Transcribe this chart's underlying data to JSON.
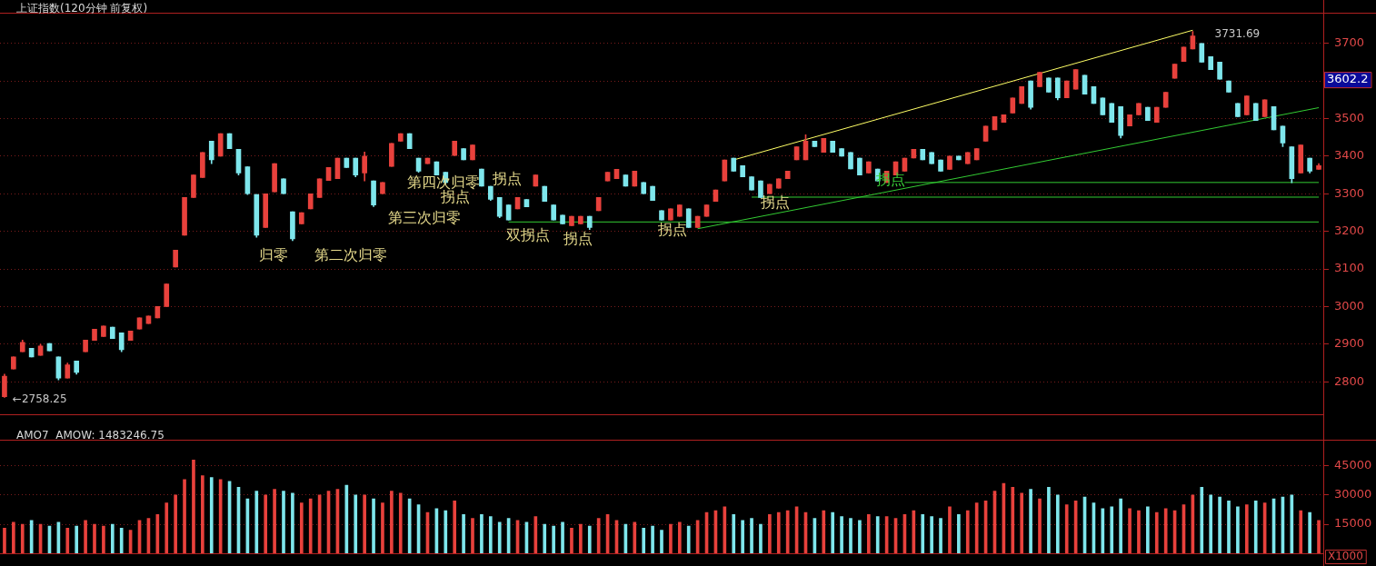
{
  "chart_data": [
    {
      "type": "candlestick",
      "title": "上证指数(120分钟 前复权)",
      "categories": [
        null,
        null,
        null,
        null,
        null,
        null,
        null,
        null,
        null,
        null,
        null,
        null,
        null,
        null,
        null,
        null,
        null,
        null,
        null,
        null,
        null,
        null,
        null,
        null,
        null,
        null,
        null,
        null,
        null,
        null,
        null,
        null,
        null,
        null,
        null,
        null,
        null,
        null,
        null,
        null,
        null,
        null,
        null,
        null,
        null,
        null,
        null,
        null,
        null,
        null,
        null,
        null,
        null,
        null,
        null,
        null,
        null,
        null,
        null,
        null,
        null,
        null,
        null,
        null,
        null,
        null,
        null,
        null,
        null,
        null,
        null,
        null,
        null,
        null,
        null,
        null,
        null,
        null,
        null,
        null,
        null,
        null,
        null,
        null,
        null,
        null,
        null,
        null,
        null,
        null,
        null,
        null,
        null,
        null,
        null,
        null,
        null,
        null,
        null,
        null,
        null,
        null,
        null,
        null,
        null,
        null,
        null,
        null,
        null,
        null,
        null,
        null,
        null,
        null,
        null,
        null,
        null,
        null,
        null,
        null,
        null,
        null,
        null,
        null,
        null,
        null,
        null,
        null,
        null,
        null,
        null,
        null,
        null,
        null,
        null,
        null,
        null,
        null,
        null,
        null,
        null,
        null,
        null,
        null,
        null,
        null,
        null
      ],
      "ohlc": [
        [
          2760,
          2820,
          2758.25,
          2815
        ],
        [
          2834,
          2866,
          2834,
          2866
        ],
        [
          2880,
          2911,
          2880,
          2905
        ],
        [
          2889,
          2889,
          2866,
          2866
        ],
        [
          2870,
          2900,
          2870,
          2895
        ],
        [
          2902,
          2902,
          2882,
          2882
        ],
        [
          2866,
          2866,
          2805,
          2810
        ],
        [
          2810,
          2850,
          2810,
          2845
        ],
        [
          2855,
          2855,
          2820,
          2825
        ],
        [
          2880,
          2911,
          2880,
          2911
        ],
        [
          2910,
          2940,
          2910,
          2940
        ],
        [
          2920,
          2948,
          2920,
          2948
        ],
        [
          2945,
          2945,
          2915,
          2915
        ],
        [
          2930,
          2930,
          2880,
          2885
        ],
        [
          2910,
          2935,
          2910,
          2935
        ],
        [
          2940,
          2970,
          2940,
          2970
        ],
        [
          2955,
          2975,
          2955,
          2975
        ],
        [
          2970,
          3000,
          2970,
          3000
        ],
        [
          3000,
          3060,
          3000,
          3060
        ],
        [
          3105,
          3150,
          3105,
          3150
        ],
        [
          3190,
          3290,
          3190,
          3290
        ],
        [
          3290,
          3350,
          3290,
          3350
        ],
        [
          3343,
          3410,
          3343,
          3410
        ],
        [
          3440,
          3440,
          3380,
          3390
        ],
        [
          3400,
          3460,
          3400,
          3460
        ],
        [
          3460,
          3460,
          3420,
          3420
        ],
        [
          3418,
          3418,
          3350,
          3355
        ],
        [
          3372,
          3372,
          3298,
          3300
        ],
        [
          3298,
          3298,
          3184,
          3190
        ],
        [
          3210,
          3300,
          3210,
          3300
        ],
        [
          3305,
          3380,
          3305,
          3380
        ],
        [
          3340,
          3340,
          3300,
          3300
        ],
        [
          3252,
          3252,
          3175,
          3180
        ],
        [
          3220,
          3250,
          3220,
          3250
        ],
        [
          3260,
          3300,
          3260,
          3300
        ],
        [
          3290,
          3340,
          3290,
          3340
        ],
        [
          3335,
          3370,
          3335,
          3370
        ],
        [
          3340,
          3395,
          3340,
          3395
        ],
        [
          3395,
          3395,
          3370,
          3370
        ],
        [
          3395,
          3395,
          3345,
          3350
        ],
        [
          3355,
          3411,
          3334,
          3400
        ],
        [
          3334,
          3334,
          3266,
          3270
        ],
        [
          3300,
          3330,
          3300,
          3330
        ],
        [
          3373,
          3434,
          3373,
          3434
        ],
        [
          3440,
          3460,
          3440,
          3460
        ],
        [
          3460,
          3460,
          3420,
          3420
        ],
        [
          3395,
          3395,
          3357,
          3360
        ],
        [
          3380,
          3395,
          3380,
          3395
        ],
        [
          3385,
          3385,
          3350,
          3350
        ],
        [
          3357,
          3357,
          3327,
          3330
        ],
        [
          3402,
          3440,
          3402,
          3440
        ],
        [
          3420,
          3420,
          3390,
          3390
        ],
        [
          3390,
          3430,
          3390,
          3430
        ],
        [
          3366,
          3366,
          3320,
          3320
        ],
        [
          3320,
          3320,
          3282,
          3285
        ],
        [
          3290,
          3290,
          3236,
          3240
        ],
        [
          3270,
          3270,
          3230,
          3230
        ],
        [
          3260,
          3290,
          3260,
          3290
        ],
        [
          3285,
          3285,
          3265,
          3265
        ],
        [
          3320,
          3350,
          3320,
          3350
        ],
        [
          3320,
          3320,
          3280,
          3280
        ],
        [
          3270,
          3270,
          3230,
          3230
        ],
        [
          3243,
          3243,
          3220,
          3220
        ],
        [
          3215,
          3240,
          3215,
          3240
        ],
        [
          3220,
          3240,
          3220,
          3240
        ],
        [
          3240,
          3240,
          3205,
          3210
        ],
        [
          3255,
          3290,
          3255,
          3290
        ],
        [
          3334,
          3357,
          3334,
          3357
        ],
        [
          3340,
          3365,
          3340,
          3365
        ],
        [
          3350,
          3350,
          3320,
          3320
        ],
        [
          3320,
          3360,
          3320,
          3360
        ],
        [
          3330,
          3330,
          3300,
          3300
        ],
        [
          3320,
          3320,
          3282,
          3282
        ],
        [
          3255,
          3255,
          3230,
          3230
        ],
        [
          3230,
          3260,
          3230,
          3260
        ],
        [
          3240,
          3270,
          3240,
          3270
        ],
        [
          3260,
          3260,
          3210,
          3210
        ],
        [
          3210,
          3240,
          3210,
          3240
        ],
        [
          3240,
          3270,
          3240,
          3270
        ],
        [
          3280,
          3310,
          3280,
          3310
        ],
        [
          3334,
          3390,
          3334,
          3390
        ],
        [
          3395,
          3395,
          3360,
          3360
        ],
        [
          3375,
          3375,
          3345,
          3345
        ],
        [
          3345,
          3345,
          3310,
          3310
        ],
        [
          3334,
          3334,
          3290,
          3290
        ],
        [
          3300,
          3325,
          3300,
          3325
        ],
        [
          3315,
          3340,
          3315,
          3340
        ],
        [
          3340,
          3360,
          3340,
          3360
        ],
        [
          3390,
          3425,
          3390,
          3425
        ],
        [
          3390,
          3457,
          3390,
          3440
        ],
        [
          3440,
          3440,
          3425,
          3425
        ],
        [
          3410,
          3447,
          3410,
          3447
        ],
        [
          3440,
          3440,
          3410,
          3410
        ],
        [
          3420,
          3420,
          3400,
          3400
        ],
        [
          3410,
          3410,
          3366,
          3366
        ],
        [
          3395,
          3395,
          3350,
          3350
        ],
        [
          3355,
          3385,
          3355,
          3385
        ],
        [
          3366,
          3366,
          3334,
          3334
        ],
        [
          3330,
          3360,
          3330,
          3360
        ],
        [
          3350,
          3385,
          3350,
          3385
        ],
        [
          3360,
          3395,
          3360,
          3395
        ],
        [
          3395,
          3418,
          3395,
          3418
        ],
        [
          3418,
          3418,
          3390,
          3390
        ],
        [
          3410,
          3410,
          3380,
          3380
        ],
        [
          3390,
          3390,
          3360,
          3360
        ],
        [
          3365,
          3400,
          3365,
          3400
        ],
        [
          3400,
          3400,
          3390,
          3390
        ],
        [
          3380,
          3410,
          3380,
          3410
        ],
        [
          3390,
          3420,
          3390,
          3420
        ],
        [
          3440,
          3480,
          3440,
          3480
        ],
        [
          3470,
          3505,
          3470,
          3505
        ],
        [
          3490,
          3510,
          3490,
          3510
        ],
        [
          3515,
          3555,
          3515,
          3555
        ],
        [
          3540,
          3585,
          3540,
          3585
        ],
        [
          3600,
          3600,
          3525,
          3530
        ],
        [
          3585,
          3623,
          3585,
          3623
        ],
        [
          3608,
          3608,
          3570,
          3570
        ],
        [
          3608,
          3608,
          3550,
          3555
        ],
        [
          3555,
          3600,
          3555,
          3600
        ],
        [
          3578,
          3630,
          3578,
          3630
        ],
        [
          3615,
          3615,
          3565,
          3565
        ],
        [
          3585,
          3585,
          3540,
          3540
        ],
        [
          3555,
          3555,
          3510,
          3510
        ],
        [
          3540,
          3540,
          3490,
          3490
        ],
        [
          3532,
          3532,
          3448,
          3455
        ],
        [
          3480,
          3510,
          3480,
          3510
        ],
        [
          3510,
          3540,
          3510,
          3540
        ],
        [
          3530,
          3530,
          3495,
          3495
        ],
        [
          3490,
          3530,
          3490,
          3530
        ],
        [
          3530,
          3570,
          3530,
          3570
        ],
        [
          3607,
          3645,
          3607,
          3645
        ],
        [
          3652,
          3690,
          3652,
          3690
        ],
        [
          3685,
          3731.69,
          3685,
          3720
        ],
        [
          3700,
          3700,
          3650,
          3650
        ],
        [
          3665,
          3665,
          3630,
          3630
        ],
        [
          3650,
          3650,
          3605,
          3605
        ],
        [
          3600,
          3600,
          3570,
          3570
        ],
        [
          3540,
          3540,
          3505,
          3505
        ],
        [
          3510,
          3560,
          3510,
          3560
        ],
        [
          3540,
          3540,
          3495,
          3495
        ],
        [
          3505,
          3550,
          3505,
          3550
        ],
        [
          3532,
          3532,
          3470,
          3470
        ],
        [
          3480,
          3480,
          3425,
          3435
        ],
        [
          3425,
          3425,
          3329,
          3340
        ],
        [
          3355,
          3430,
          3355,
          3430
        ],
        [
          3395,
          3395,
          3355,
          3360
        ],
        [
          3365,
          3380,
          3365,
          3375
        ]
      ],
      "colors": [
        "#e8413c",
        "#e8413c",
        "#e8413c",
        "#7ee6ec",
        "#e8413c",
        "#7ee6ec",
        "#7ee6ec",
        "#e8413c",
        "#7ee6ec",
        "#e8413c",
        "#e8413c",
        "#e8413c",
        "#7ee6ec",
        "#7ee6ec",
        "#e8413c",
        "#e8413c",
        "#e8413c",
        "#e8413c",
        "#e8413c",
        "#e8413c",
        "#e8413c",
        "#e8413c",
        "#e8413c",
        "#7ee6ec",
        "#e8413c",
        "#7ee6ec",
        "#7ee6ec",
        "#7ee6ec",
        "#7ee6ec",
        "#e8413c",
        "#e8413c",
        "#7ee6ec",
        "#7ee6ec",
        "#e8413c",
        "#e8413c",
        "#e8413c",
        "#e8413c",
        "#e8413c",
        "#7ee6ec",
        "#7ee6ec",
        "#e8413c",
        "#7ee6ec",
        "#e8413c",
        "#e8413c",
        "#e8413c",
        "#7ee6ec",
        "#7ee6ec",
        "#e8413c",
        "#7ee6ec",
        "#7ee6ec",
        "#e8413c",
        "#7ee6ec",
        "#e8413c",
        "#7ee6ec",
        "#7ee6ec",
        "#7ee6ec",
        "#7ee6ec",
        "#e8413c",
        "#7ee6ec",
        "#e8413c",
        "#7ee6ec",
        "#7ee6ec",
        "#7ee6ec",
        "#e8413c",
        "#e8413c",
        "#7ee6ec",
        "#e8413c",
        "#e8413c",
        "#e8413c",
        "#7ee6ec",
        "#e8413c",
        "#7ee6ec",
        "#7ee6ec",
        "#7ee6ec",
        "#e8413c",
        "#e8413c",
        "#7ee6ec",
        "#e8413c",
        "#e8413c",
        "#e8413c",
        "#e8413c",
        "#7ee6ec",
        "#7ee6ec",
        "#7ee6ec",
        "#7ee6ec",
        "#e8413c",
        "#e8413c",
        "#e8413c",
        "#e8413c",
        "#e8413c",
        "#7ee6ec",
        "#e8413c",
        "#7ee6ec",
        "#7ee6ec",
        "#7ee6ec",
        "#7ee6ec",
        "#e8413c",
        "#7ee6ec",
        "#e8413c",
        "#e8413c",
        "#e8413c",
        "#e8413c",
        "#7ee6ec",
        "#7ee6ec",
        "#7ee6ec",
        "#e8413c",
        "#7ee6ec",
        "#e8413c",
        "#e8413c",
        "#e8413c",
        "#e8413c",
        "#e8413c",
        "#e8413c",
        "#e8413c",
        "#7ee6ec",
        "#e8413c",
        "#7ee6ec",
        "#7ee6ec",
        "#e8413c",
        "#e8413c",
        "#7ee6ec",
        "#7ee6ec",
        "#7ee6ec",
        "#7ee6ec",
        "#7ee6ec",
        "#e8413c",
        "#e8413c",
        "#7ee6ec",
        "#e8413c",
        "#e8413c",
        "#e8413c",
        "#e8413c",
        "#e8413c",
        "#7ee6ec",
        "#7ee6ec",
        "#7ee6ec",
        "#7ee6ec",
        "#7ee6ec",
        "#e8413c",
        "#7ee6ec",
        "#e8413c",
        "#7ee6ec",
        "#7ee6ec",
        "#7ee6ec",
        "#e8413c",
        "#7ee6ec",
        "#e8413c"
      ],
      "series": [
        {
          "type": "line",
          "color": "#ffff66",
          "values": [
            null,
            null,
            null,
            null,
            null,
            null,
            null,
            null,
            null,
            null,
            null,
            null,
            null,
            null,
            null,
            null,
            null,
            null,
            null,
            null,
            null,
            null,
            null,
            null,
            null,
            null,
            null,
            null,
            null,
            null,
            null,
            null,
            null,
            null,
            null,
            null,
            null,
            null,
            null,
            null,
            null,
            null,
            null,
            null,
            null,
            null,
            null,
            null,
            null,
            null,
            null,
            null,
            null,
            null,
            null,
            null,
            null,
            null,
            null,
            null,
            null,
            null,
            null,
            null,
            null,
            null,
            null,
            null,
            null,
            null,
            null,
            null,
            null,
            null,
            null,
            null,
            null,
            null,
            null,
            null,
            null,
            3390,
            null,
            null,
            null,
            null,
            null,
            null,
            null,
            null,
            null,
            null,
            null,
            null,
            null,
            null,
            null,
            null,
            null,
            null,
            null,
            null,
            null,
            null,
            null,
            null,
            null,
            null,
            null,
            null,
            null,
            null,
            null,
            null,
            null,
            null,
            null,
            null,
            null,
            null,
            null,
            null,
            null,
            null,
            null,
            null,
            null,
            null,
            null,
            null,
            null,
            null,
            3735,
            null,
            null,
            null,
            null,
            null,
            null,
            null,
            null,
            null,
            null,
            null,
            null,
            null,
            null
          ]
        },
        {
          "type": "line",
          "color": "#33cc33",
          "values": [
            null,
            null,
            null,
            null,
            null,
            null,
            null,
            null,
            null,
            null,
            null,
            null,
            null,
            null,
            null,
            null,
            null,
            null,
            null,
            null,
            null,
            null,
            null,
            null,
            null,
            null,
            null,
            null,
            null,
            null,
            null,
            null,
            null,
            null,
            null,
            null,
            null,
            null,
            null,
            null,
            null,
            null,
            null,
            null,
            null,
            null,
            null,
            null,
            null,
            null,
            null,
            null,
            null,
            null,
            null,
            null,
            null,
            null,
            null,
            null,
            null,
            null,
            null,
            null,
            null,
            null,
            null,
            null,
            null,
            null,
            null,
            null,
            null,
            null,
            null,
            null,
            null,
            3207,
            null,
            null,
            null,
            null,
            null,
            null,
            null,
            null,
            null,
            null,
            null,
            null,
            null,
            null,
            null,
            null,
            null,
            null,
            null,
            null,
            null,
            null,
            null,
            null,
            null,
            null,
            null,
            null,
            null,
            null,
            null,
            null,
            null,
            null,
            null,
            null,
            null,
            null,
            null,
            null,
            null,
            null,
            null,
            null,
            null,
            null,
            null,
            null,
            null,
            null,
            null,
            null,
            null,
            null,
            null,
            null,
            null,
            null,
            null,
            null,
            null,
            null,
            null,
            null,
            null,
            null,
            null,
            null,
            3529
          ]
        },
        {
          "type": "line",
          "color": "#33cc33",
          "values": [
            null,
            null,
            null,
            null,
            null,
            null,
            null,
            null,
            null,
            null,
            null,
            null,
            null,
            null,
            null,
            null,
            null,
            null,
            null,
            null,
            null,
            null,
            null,
            null,
            null,
            null,
            null,
            null,
            null,
            null,
            null,
            null,
            null,
            null,
            null,
            null,
            null,
            null,
            null,
            null,
            null,
            null,
            null,
            null,
            null,
            null,
            null,
            null,
            null,
            null,
            null,
            null,
            null,
            null,
            null,
            null,
            3225,
            null,
            null,
            null,
            null,
            null,
            null,
            null,
            null,
            null,
            null,
            null,
            null,
            null,
            null,
            null,
            null,
            null,
            null,
            null,
            null,
            null,
            null,
            null,
            null,
            null,
            null,
            null,
            null,
            null,
            null,
            null,
            null,
            null,
            null,
            null,
            null,
            null,
            null,
            null,
            null,
            null,
            null,
            null,
            null,
            null,
            null,
            null,
            null,
            null,
            null,
            null,
            null,
            null,
            null,
            null,
            null,
            null,
            null,
            null,
            null,
            null,
            null,
            null,
            null,
            null,
            null,
            null,
            null,
            null,
            null,
            null,
            null,
            null,
            null,
            null,
            null,
            null,
            null,
            null,
            null,
            null,
            null,
            null,
            null,
            null,
            null,
            null,
            null,
            null,
            3225
          ]
        },
        {
          "type": "line",
          "color": "#33cc33",
          "values": [
            null,
            null,
            null,
            null,
            null,
            null,
            null,
            null,
            null,
            null,
            null,
            null,
            null,
            null,
            null,
            null,
            null,
            null,
            null,
            null,
            null,
            null,
            null,
            null,
            null,
            null,
            null,
            null,
            null,
            null,
            null,
            null,
            null,
            null,
            null,
            null,
            null,
            null,
            null,
            null,
            null,
            null,
            null,
            null,
            null,
            null,
            null,
            null,
            null,
            null,
            null,
            null,
            null,
            null,
            null,
            null,
            null,
            null,
            null,
            null,
            null,
            null,
            null,
            null,
            null,
            null,
            null,
            null,
            null,
            null,
            null,
            null,
            null,
            null,
            null,
            null,
            null,
            null,
            null,
            null,
            null,
            null,
            null,
            3291,
            null,
            null,
            null,
            null,
            null,
            null,
            null,
            null,
            null,
            null,
            null,
            null,
            null,
            null,
            null,
            null,
            null,
            null,
            null,
            null,
            null,
            null,
            null,
            null,
            null,
            null,
            null,
            null,
            null,
            null,
            null,
            null,
            null,
            null,
            null,
            null,
            null,
            null,
            null,
            null,
            null,
            null,
            null,
            null,
            null,
            null,
            null,
            null,
            null,
            null,
            null,
            null,
            null,
            null,
            null,
            null,
            null,
            null,
            null,
            null,
            null,
            null,
            3291
          ]
        },
        {
          "type": "line",
          "color": "#33cc33",
          "values": [
            null,
            null,
            null,
            null,
            null,
            null,
            null,
            null,
            null,
            null,
            null,
            null,
            null,
            null,
            null,
            null,
            null,
            null,
            null,
            null,
            null,
            null,
            null,
            null,
            null,
            null,
            null,
            null,
            null,
            null,
            null,
            null,
            null,
            null,
            null,
            null,
            null,
            null,
            null,
            null,
            null,
            null,
            null,
            null,
            null,
            null,
            null,
            null,
            null,
            null,
            null,
            null,
            null,
            null,
            null,
            null,
            null,
            null,
            null,
            null,
            null,
            null,
            null,
            null,
            null,
            null,
            null,
            null,
            null,
            null,
            null,
            null,
            null,
            null,
            null,
            null,
            null,
            null,
            null,
            null,
            null,
            null,
            null,
            null,
            null,
            null,
            null,
            null,
            null,
            null,
            null,
            null,
            null,
            null,
            null,
            null,
            null,
            null,
            null,
            null,
            3330,
            null,
            null,
            null,
            null,
            null,
            null,
            null,
            null,
            null,
            null,
            null,
            null,
            null,
            null,
            null,
            null,
            null,
            null,
            null,
            null,
            null,
            null,
            null,
            null,
            null,
            null,
            null,
            null,
            null,
            null,
            null,
            null,
            null,
            null,
            null,
            null,
            null,
            null,
            null,
            null,
            null,
            null,
            null,
            null,
            null,
            3330
          ]
        }
      ],
      "ylim": [
        2713,
        3782
      ],
      "yticks": [
        2800,
        2900,
        3000,
        3100,
        3200,
        3300,
        3400,
        3500,
        {
          "value": 3600,
          "label": null
        },
        3700
      ],
      "tick_labels": "y",
      "grid": "y",
      "annotations": [
        "归零",
        "第二次归零",
        "第三次归零",
        "第四次归零",
        "拐点",
        "拐点",
        "双拐点",
        "拐点",
        "拐点",
        "拐点",
        "拐点",
        "3731.69",
        "←2758.25",
        "3602.2"
      ]
    },
    {
      "type": "bar",
      "title": "AMO7  AMOW: 1483246.75",
      "categories": [
        null,
        null,
        null,
        null,
        null,
        null,
        null,
        null,
        null,
        null,
        null,
        null,
        null,
        null,
        null,
        null,
        null,
        null,
        null,
        null,
        null,
        null,
        null,
        null,
        null,
        null,
        null,
        null,
        null,
        null,
        null,
        null,
        null,
        null,
        null,
        null,
        null,
        null,
        null,
        null,
        null,
        null,
        null,
        null,
        null,
        null,
        null,
        null,
        null,
        null,
        null,
        null,
        null,
        null,
        null,
        null,
        null,
        null,
        null,
        null,
        null,
        null,
        null,
        null,
        null,
        null,
        null,
        null,
        null,
        null,
        null,
        null,
        null,
        null,
        null,
        null,
        null,
        null,
        null,
        null,
        null,
        null,
        null,
        null,
        null,
        null,
        null,
        null,
        null,
        null,
        null,
        null,
        null,
        null,
        null,
        null,
        null,
        null,
        null,
        null,
        null,
        null,
        null,
        null,
        null,
        null,
        null,
        null,
        null,
        null,
        null,
        null,
        null,
        null,
        null,
        null,
        null,
        null,
        null,
        null,
        null,
        null,
        null,
        null,
        null,
        null,
        null,
        null,
        null,
        null,
        null,
        null,
        null,
        null,
        null,
        null,
        null,
        null,
        null,
        null,
        null,
        null,
        null,
        null,
        null,
        null,
        null
      ],
      "values": [
        13000,
        16000,
        15000,
        17000,
        15000,
        14000,
        16000,
        13000,
        14000,
        17000,
        15000,
        14000,
        15000,
        13000,
        12000,
        17000,
        18000,
        20000,
        26000,
        30000,
        38000,
        48000,
        40000,
        39000,
        38000,
        37000,
        34000,
        28000,
        32000,
        30000,
        33000,
        32000,
        31000,
        26000,
        28000,
        30000,
        32000,
        33000,
        35000,
        30000,
        30000,
        28000,
        26000,
        32000,
        31000,
        28000,
        25000,
        21000,
        23000,
        22000,
        27000,
        20000,
        18000,
        20000,
        19000,
        16000,
        18000,
        17000,
        16000,
        19000,
        15000,
        14000,
        16000,
        13000,
        15000,
        14000,
        18000,
        20000,
        17000,
        15000,
        16000,
        13000,
        14000,
        12000,
        15000,
        16000,
        14000,
        17000,
        21000,
        22000,
        24000,
        20000,
        17000,
        18000,
        15000,
        20000,
        21000,
        22000,
        24000,
        21000,
        18000,
        22000,
        21000,
        19000,
        18000,
        17000,
        20000,
        19000,
        19000,
        18000,
        20000,
        22000,
        20000,
        19000,
        18000,
        24000,
        20000,
        22000,
        26000,
        27000,
        32000,
        36000,
        34000,
        31000,
        33000,
        28000,
        34000,
        30000,
        25000,
        27000,
        29000,
        26000,
        23000,
        24000,
        28000,
        23000,
        22000,
        24000,
        21000,
        23000,
        22000,
        25000,
        30000,
        34000,
        30000,
        29000,
        27000,
        24000,
        25000,
        27000,
        26000,
        28000,
        29000,
        30000,
        22000,
        21000,
        17000
      ],
      "colors": [
        "#e8413c",
        "#e8413c",
        "#e8413c",
        "#7ee6ec",
        "#e8413c",
        "#7ee6ec",
        "#7ee6ec",
        "#e8413c",
        "#7ee6ec",
        "#e8413c",
        "#e8413c",
        "#e8413c",
        "#7ee6ec",
        "#7ee6ec",
        "#e8413c",
        "#e8413c",
        "#e8413c",
        "#e8413c",
        "#e8413c",
        "#e8413c",
        "#e8413c",
        "#e8413c",
        "#e8413c",
        "#7ee6ec",
        "#e8413c",
        "#7ee6ec",
        "#7ee6ec",
        "#7ee6ec",
        "#7ee6ec",
        "#e8413c",
        "#e8413c",
        "#7ee6ec",
        "#7ee6ec",
        "#e8413c",
        "#e8413c",
        "#e8413c",
        "#e8413c",
        "#e8413c",
        "#7ee6ec",
        "#7ee6ec",
        "#e8413c",
        "#7ee6ec",
        "#e8413c",
        "#e8413c",
        "#e8413c",
        "#7ee6ec",
        "#7ee6ec",
        "#e8413c",
        "#7ee6ec",
        "#7ee6ec",
        "#e8413c",
        "#7ee6ec",
        "#e8413c",
        "#7ee6ec",
        "#7ee6ec",
        "#7ee6ec",
        "#7ee6ec",
        "#e8413c",
        "#7ee6ec",
        "#e8413c",
        "#7ee6ec",
        "#7ee6ec",
        "#7ee6ec",
        "#e8413c",
        "#e8413c",
        "#7ee6ec",
        "#e8413c",
        "#e8413c",
        "#e8413c",
        "#7ee6ec",
        "#e8413c",
        "#7ee6ec",
        "#7ee6ec",
        "#7ee6ec",
        "#e8413c",
        "#e8413c",
        "#7ee6ec",
        "#e8413c",
        "#e8413c",
        "#e8413c",
        "#e8413c",
        "#7ee6ec",
        "#7ee6ec",
        "#7ee6ec",
        "#7ee6ec",
        "#e8413c",
        "#e8413c",
        "#e8413c",
        "#e8413c",
        "#e8413c",
        "#7ee6ec",
        "#e8413c",
        "#7ee6ec",
        "#7ee6ec",
        "#7ee6ec",
        "#7ee6ec",
        "#e8413c",
        "#7ee6ec",
        "#e8413c",
        "#e8413c",
        "#e8413c",
        "#e8413c",
        "#7ee6ec",
        "#7ee6ec",
        "#7ee6ec",
        "#e8413c",
        "#7ee6ec",
        "#e8413c",
        "#e8413c",
        "#e8413c",
        "#e8413c",
        "#e8413c",
        "#e8413c",
        "#e8413c",
        "#7ee6ec",
        "#e8413c",
        "#7ee6ec",
        "#7ee6ec",
        "#e8413c",
        "#e8413c",
        "#7ee6ec",
        "#7ee6ec",
        "#7ee6ec",
        "#7ee6ec",
        "#7ee6ec",
        "#e8413c",
        "#e8413c",
        "#7ee6ec",
        "#e8413c",
        "#e8413c",
        "#e8413c",
        "#e8413c",
        "#e8413c",
        "#7ee6ec",
        "#7ee6ec",
        "#7ee6ec",
        "#7ee6ec",
        "#7ee6ec",
        "#e8413c",
        "#7ee6ec",
        "#e8413c",
        "#7ee6ec",
        "#7ee6ec",
        "#7ee6ec",
        "#e8413c",
        "#7ee6ec",
        "#e8413c"
      ],
      "ylim": [
        0,
        58500
      ],
      "yticks": [
        15000,
        30000,
        45000
      ],
      "tick_labels": "y",
      "grid": "y",
      "annotations": [
        "X1000"
      ]
    }
  ]
}
